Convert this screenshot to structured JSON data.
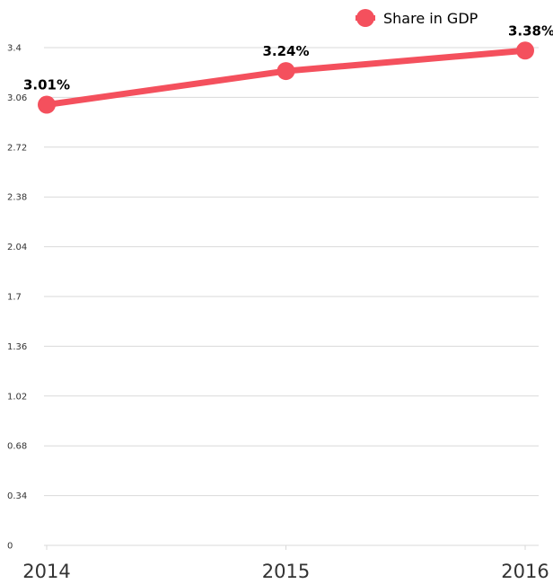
{
  "chart_data": {
    "type": "line",
    "x": [
      "2014",
      "2015",
      "2016"
    ],
    "series": [
      {
        "name": "Share in GDP",
        "values": [
          3.01,
          3.24,
          3.38
        ],
        "labels": [
          "3.01%",
          "3.24%",
          "3.38%"
        ],
        "color": "#f4505d"
      }
    ],
    "yticks": [
      "0",
      "0.34",
      "0.68",
      "1.02",
      "1.36",
      "1.7",
      "2.04",
      "2.38",
      "2.72",
      "3.06",
      "3.4"
    ],
    "ylim": [
      0,
      3.4
    ],
    "grid": true,
    "legend": "top-right",
    "title": "",
    "xlabel": "",
    "ylabel": ""
  }
}
